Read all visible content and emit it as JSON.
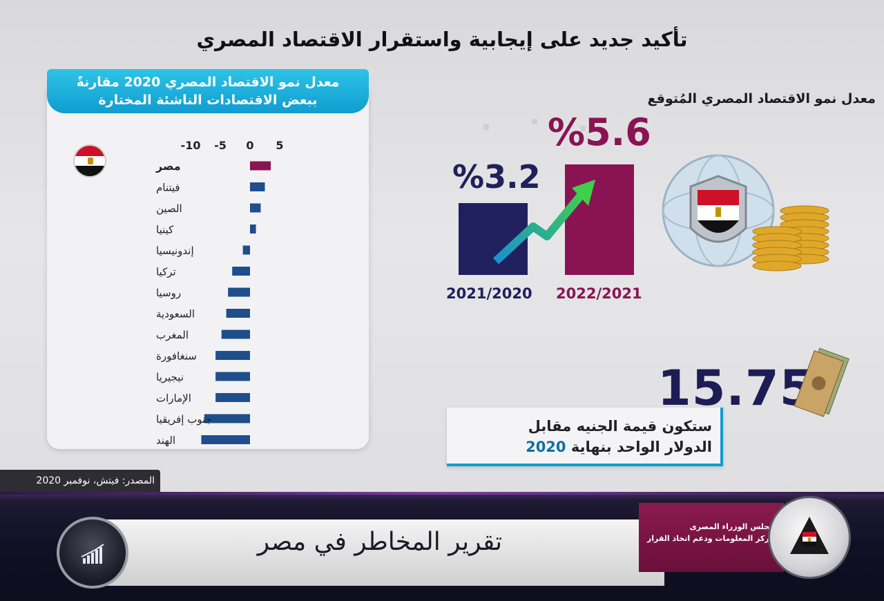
{
  "title": "تأكيد جديد على إيجابية واستقرار الاقتصاد المصري",
  "left_panel": {
    "header_line1": "معدل نمو الاقتصاد المصري 2020 مقارنةً",
    "header_line2": "ببعض الاقتصادات الناشئة المختارة",
    "source": "المصدر: فيتش، نوفمبر 2020"
  },
  "chart_data": {
    "type": "bar",
    "orientation": "horizontal",
    "axis_ticks": [
      "-10",
      "-5",
      "0",
      "5"
    ],
    "xlim": [
      -10,
      5
    ],
    "categories": [
      "مصر",
      "فيتنام",
      "الصين",
      "كينيا",
      "إندونيسيا",
      "تركيا",
      "روسيا",
      "السعودية",
      "المغرب",
      "سنغافورة",
      "نيجيريا",
      "الإمارات",
      "جنوب إفريقيا",
      "الهند"
    ],
    "values": [
      3.5,
      2.5,
      1.8,
      1.0,
      -1.2,
      -3.0,
      -3.7,
      -4.0,
      -4.8,
      -5.8,
      -5.8,
      -5.8,
      -7.7,
      -8.2
    ],
    "highlight_color": "#8a1453",
    "bar_color": "#1f4e8c"
  },
  "growth_forecast": {
    "title": "معدل نمو الاقتصاد المصري المُتوقع",
    "items": [
      {
        "value_label": "%3.2",
        "year": "2021/2020",
        "value": 3.2,
        "color": "#1f1f5e"
      },
      {
        "value_label": "%5.6",
        "year": "2022/2021",
        "value": 5.6,
        "color": "#8a1453"
      }
    ]
  },
  "exchange": {
    "rate": "15.75",
    "line1": "ستكون قيمة الجنيه مقابل",
    "line2_prefix": "الدولار الواحد بنهاية",
    "line2_year": "2020"
  },
  "banner": {
    "report_title": "تقرير المخاطر في مصر",
    "org_line1": "مجلس الوزراء المصرى",
    "org_line2": "مركز المعلومات ودعم اتخاذ القرار"
  }
}
